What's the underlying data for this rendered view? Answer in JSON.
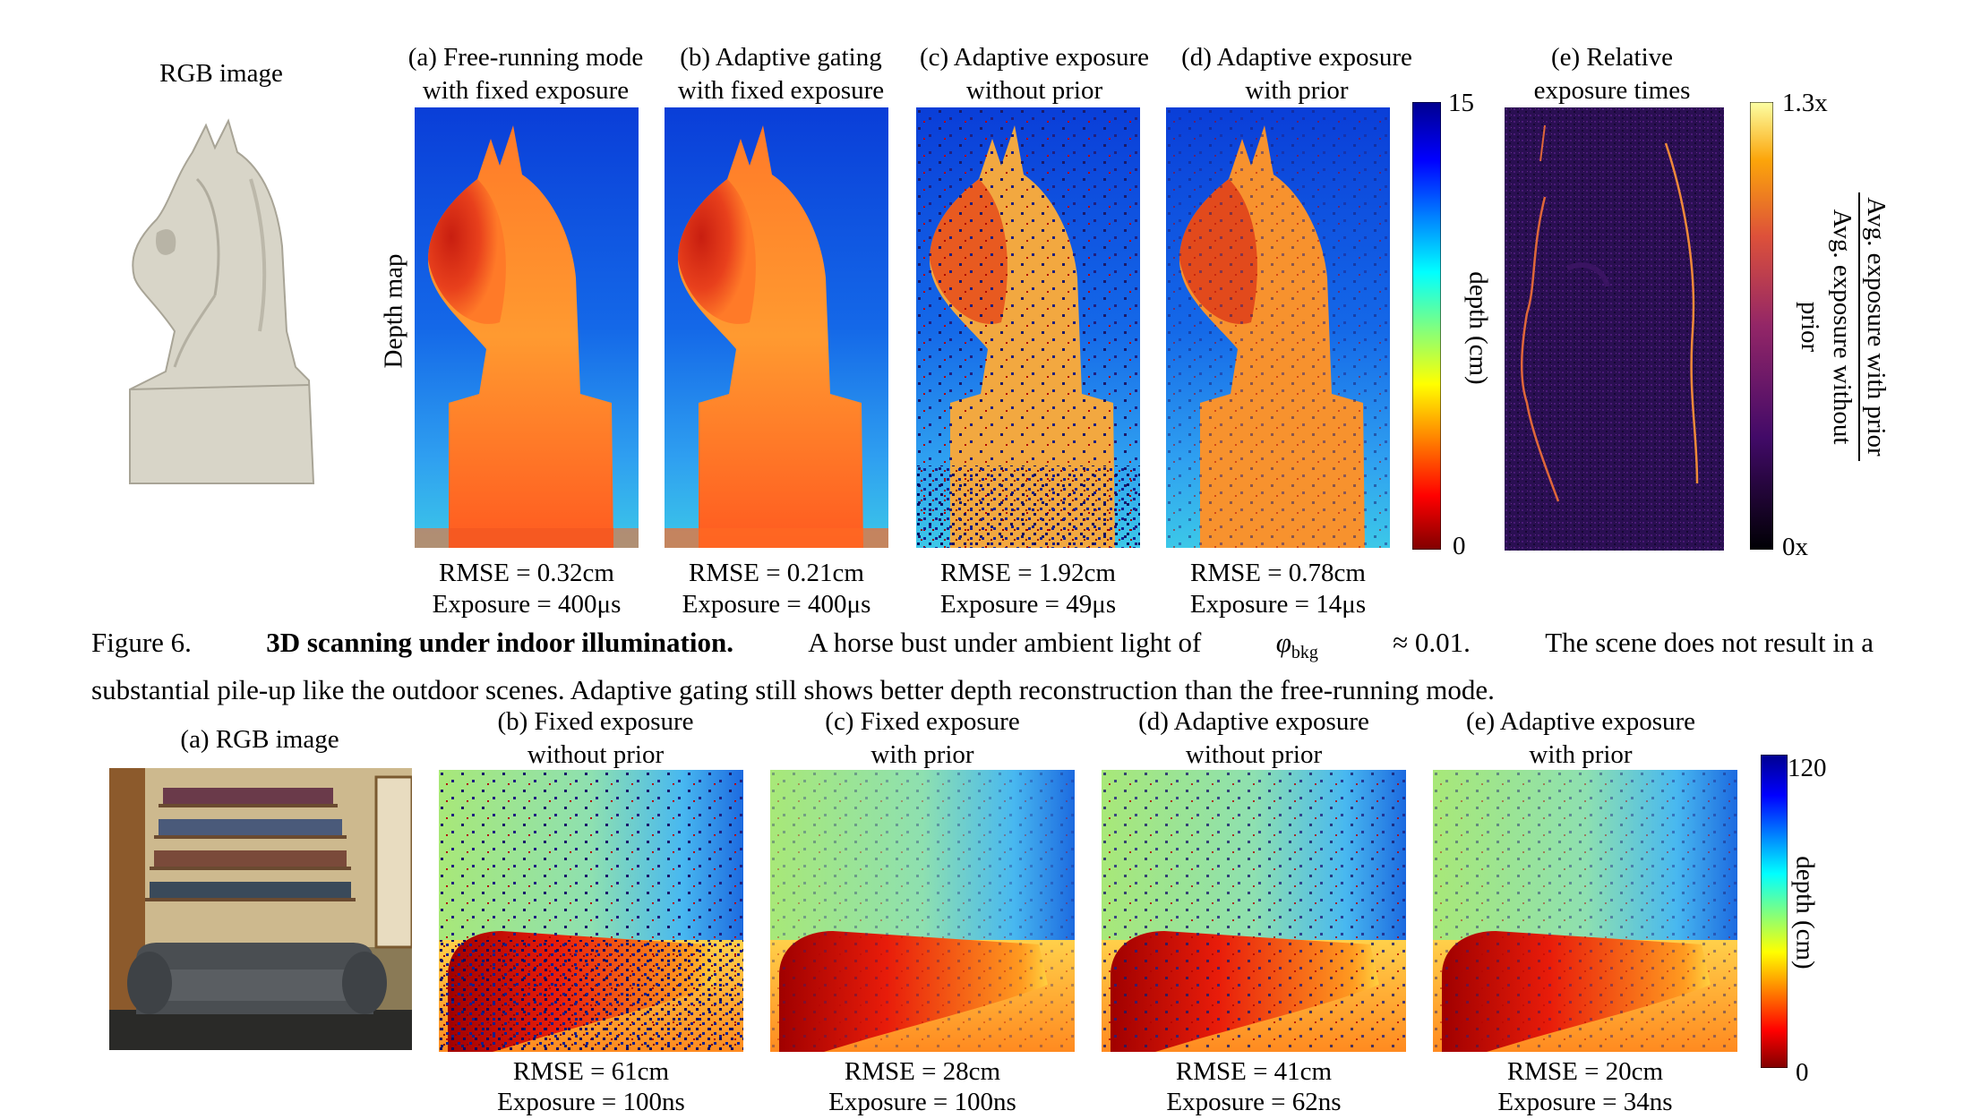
{
  "fig6": {
    "rgb_label": "RGB image",
    "row_label": "Depth map",
    "panels": [
      {
        "title1": "(a) Free-running mode",
        "title2": "with fixed exposure",
        "rmse": "RMSE = 0.32cm",
        "exposure": "Exposure = 400μs"
      },
      {
        "title1": "(b) Adaptive gating",
        "title2": "with fixed exposure",
        "rmse": "RMSE = 0.21cm",
        "exposure": "Exposure = 400μs"
      },
      {
        "title1": "(c) Adaptive exposure",
        "title2": "without prior",
        "rmse": "RMSE = 1.92cm",
        "exposure": "Exposure = 49μs"
      },
      {
        "title1": "(d) Adaptive exposure",
        "title2": "with prior",
        "rmse": "RMSE = 0.78cm",
        "exposure": "Exposure = 14μs"
      }
    ],
    "depth_colorbar": {
      "max": "15",
      "min": "0",
      "label": "depth (cm)"
    },
    "relative": {
      "title1": "(e) Relative",
      "title2": "exposure times",
      "max": "1.3x",
      "min": "0x",
      "label_num": "Avg. exposure with prior",
      "label_den": "Avg. exposure without prior"
    },
    "caption_prefix": "Figure 6.",
    "caption_bold": "3D scanning under indoor illumination.",
    "caption_line1_rest_a": "A horse bust under ambient light of",
    "caption_phi": "φ",
    "caption_sub": "bkg",
    "caption_approx": "≈ 0.01.",
    "caption_line1_rest_b": "The scene does not result in a",
    "caption_line2": "substantial pile-up like the outdoor scenes. Adaptive gating still shows better depth reconstruction than the free-running mode."
  },
  "fig7": {
    "rgb_label": "(a) RGB image",
    "panels": [
      {
        "title1": "(b) Fixed exposure",
        "title2": "without prior",
        "rmse": "RMSE = 61cm",
        "exposure": "Exposure = 100ns"
      },
      {
        "title1": "(c) Fixed exposure",
        "title2": "with prior",
        "rmse": "RMSE = 28cm",
        "exposure": "Exposure = 100ns"
      },
      {
        "title1": "(d) Adaptive exposure",
        "title2": "without prior",
        "rmse": "RMSE = 41cm",
        "exposure": "Exposure = 62ns"
      },
      {
        "title1": "(e) Adaptive exposure",
        "title2": "with prior",
        "rmse": "RMSE = 20cm",
        "exposure": "Exposure = 34ns"
      }
    ],
    "depth_colorbar": {
      "max": "120",
      "min": "0",
      "label": "depth (cm)"
    }
  },
  "colors": {
    "jet_low": "#800000",
    "jet_mid": "#ffff00",
    "jet_high": "#00008f",
    "inferno_low": "#000004",
    "inferno_high": "#fcffa4"
  }
}
